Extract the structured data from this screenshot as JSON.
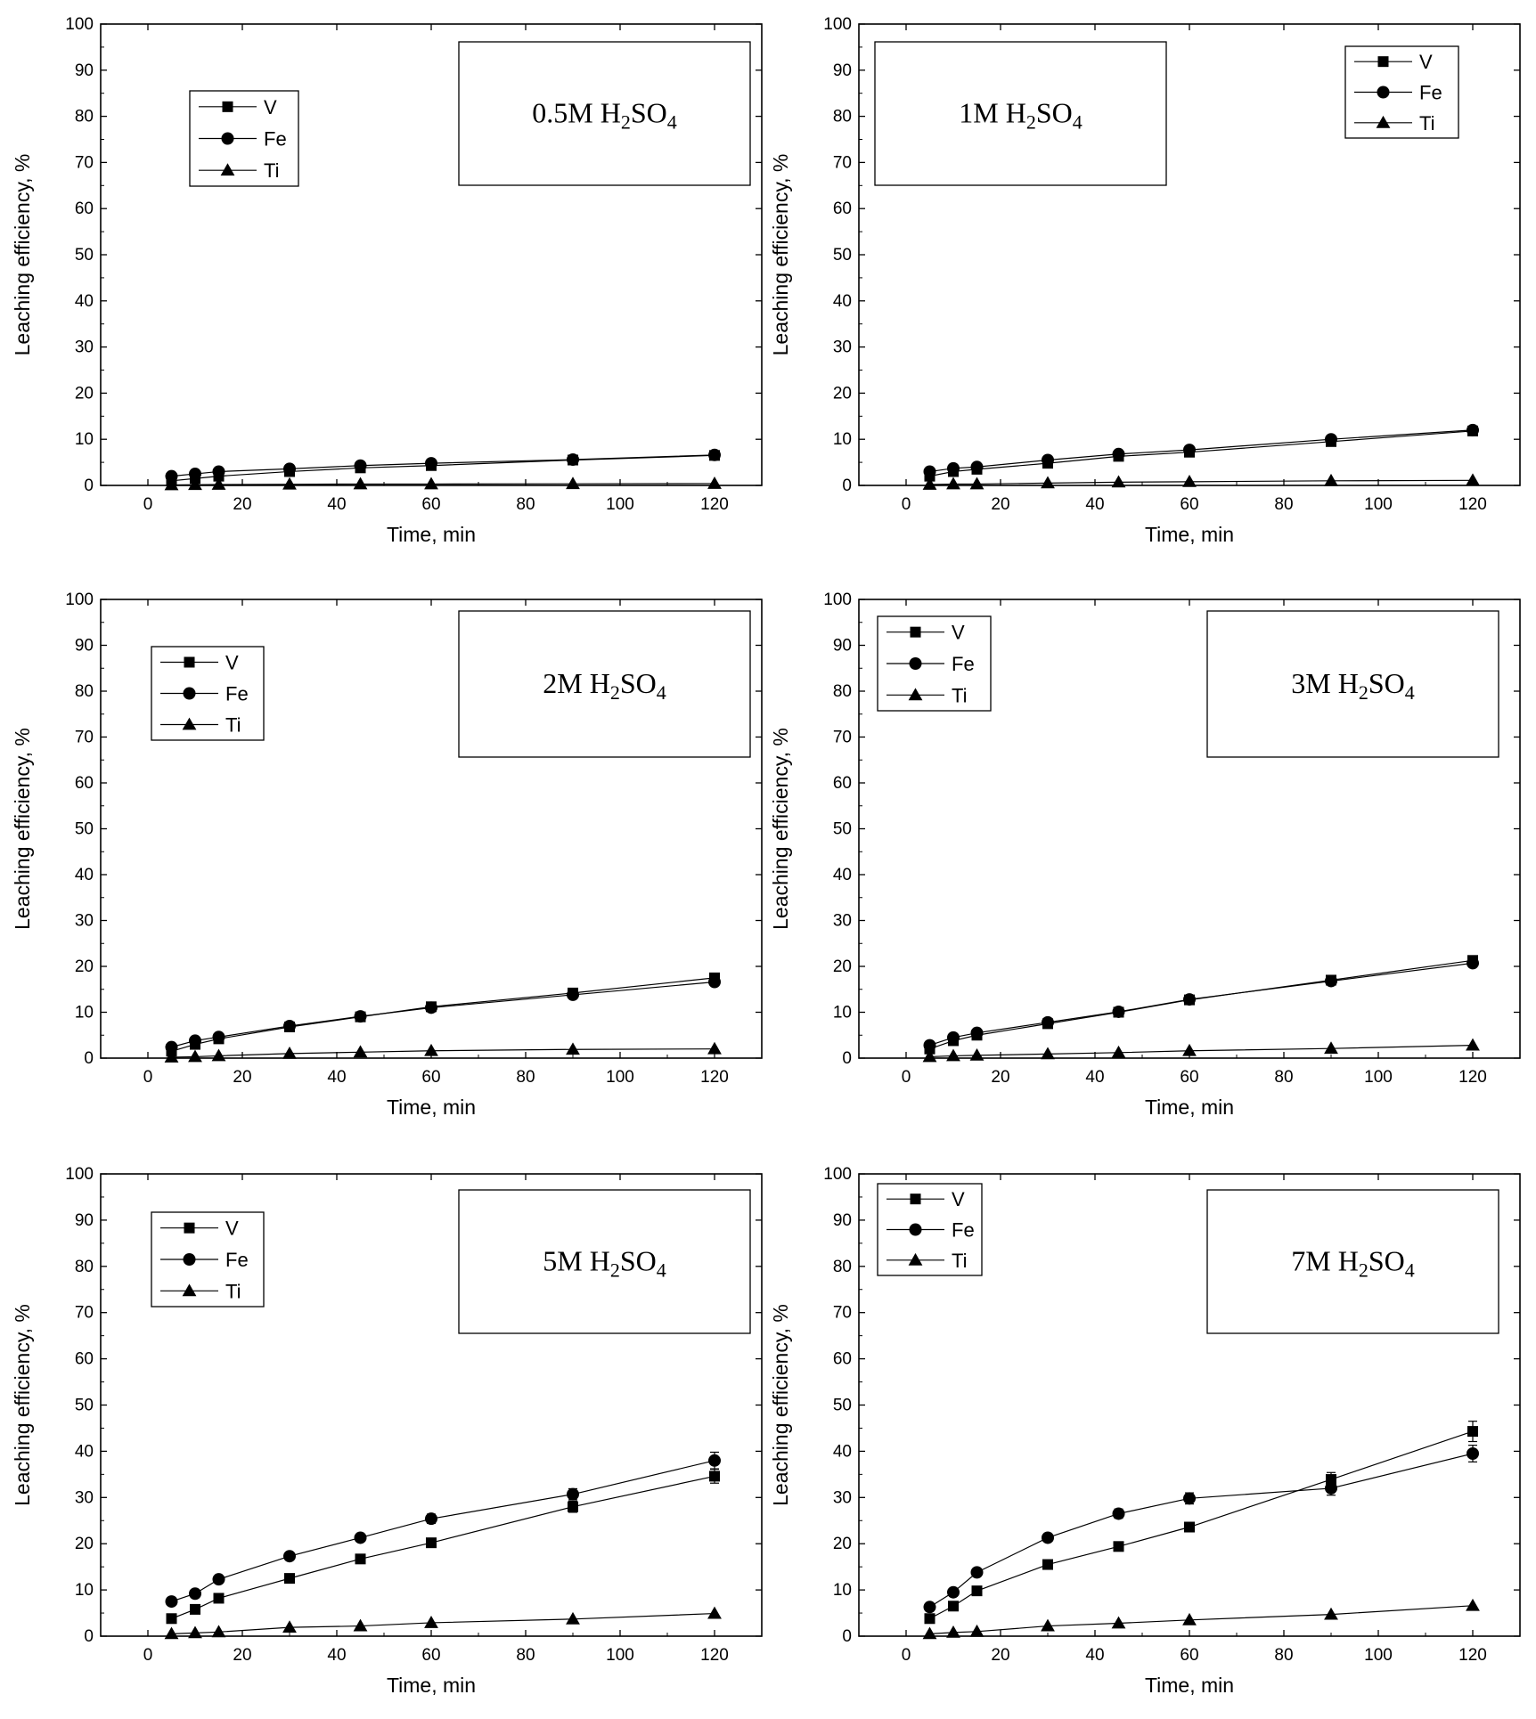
{
  "chart_data": [
    {
      "type": "line",
      "concentration": "0.5M",
      "acid": {
        "main": "H",
        "sub1": "2",
        "mid": "SO",
        "sub2": "4"
      },
      "xlabel": "Time, min",
      "ylabel": "Leaching efficiency, %",
      "xlim": [
        -10,
        130
      ],
      "ylim": [
        0,
        100
      ],
      "xticks": [
        0,
        20,
        40,
        60,
        80,
        100,
        120
      ],
      "yticks": [
        0,
        10,
        20,
        30,
        40,
        50,
        60,
        70,
        80,
        90,
        100
      ],
      "legend_position": "upper-left",
      "x": [
        5,
        10,
        15,
        30,
        45,
        60,
        90,
        120
      ],
      "series": [
        {
          "name": "V",
          "marker": "square",
          "values": [
            1.0,
            1.5,
            2.0,
            3.0,
            3.8,
            4.3,
            5.5,
            6.5
          ]
        },
        {
          "name": "Fe",
          "marker": "circle",
          "values": [
            2.0,
            2.5,
            3.0,
            3.6,
            4.3,
            4.8,
            5.6,
            6.6
          ]
        },
        {
          "name": "Ti",
          "marker": "triangle",
          "values": [
            0.1,
            0.15,
            0.2,
            0.25,
            0.3,
            0.3,
            0.35,
            0.4
          ]
        }
      ]
    },
    {
      "type": "line",
      "concentration": "1M",
      "acid": {
        "main": "H",
        "sub1": "2",
        "mid": "SO",
        "sub2": "4"
      },
      "xlabel": "Time, min",
      "ylabel": "Leaching efficiency, %",
      "xlim": [
        -10,
        130
      ],
      "ylim": [
        0,
        100
      ],
      "xticks": [
        0,
        20,
        40,
        60,
        80,
        100,
        120
      ],
      "yticks": [
        0,
        10,
        20,
        30,
        40,
        50,
        60,
        70,
        80,
        90,
        100
      ],
      "legend_position": "upper-right",
      "x": [
        5,
        10,
        15,
        30,
        45,
        60,
        90,
        120
      ],
      "series": [
        {
          "name": "V",
          "marker": "square",
          "values": [
            2.0,
            3.0,
            3.5,
            4.8,
            6.3,
            7.2,
            9.5,
            11.8
          ]
        },
        {
          "name": "Fe",
          "marker": "circle",
          "values": [
            3.0,
            3.7,
            4.0,
            5.5,
            6.8,
            7.7,
            10.0,
            12.0
          ]
        },
        {
          "name": "Ti",
          "marker": "triangle",
          "values": [
            0.2,
            0.3,
            0.3,
            0.5,
            0.7,
            0.8,
            1.0,
            1.1
          ]
        }
      ]
    },
    {
      "type": "line",
      "concentration": "2M",
      "acid": {
        "main": "H",
        "sub1": "2",
        "mid": "SO",
        "sub2": "4"
      },
      "xlabel": "Time, min",
      "ylabel": "Leaching efficiency, %",
      "xlim": [
        -10,
        130
      ],
      "ylim": [
        0,
        100
      ],
      "xticks": [
        0,
        20,
        40,
        60,
        80,
        100,
        120
      ],
      "yticks": [
        0,
        10,
        20,
        30,
        40,
        50,
        60,
        70,
        80,
        90,
        100
      ],
      "legend_position": "upper-left",
      "x": [
        5,
        10,
        15,
        30,
        45,
        60,
        90,
        120
      ],
      "series": [
        {
          "name": "V",
          "marker": "square",
          "values": [
            1.5,
            3.0,
            4.2,
            6.8,
            9.0,
            11.2,
            14.2,
            17.5
          ]
        },
        {
          "name": "Fe",
          "marker": "circle",
          "values": [
            2.4,
            3.8,
            4.6,
            7.0,
            9.1,
            11.0,
            13.8,
            16.6
          ]
        },
        {
          "name": "Ti",
          "marker": "triangle",
          "values": [
            0.2,
            0.3,
            0.5,
            1.0,
            1.3,
            1.6,
            1.9,
            2.0
          ]
        }
      ]
    },
    {
      "type": "line",
      "concentration": "3M",
      "acid": {
        "main": "H",
        "sub1": "2",
        "mid": "SO",
        "sub2": "4"
      },
      "xlabel": "Time, min",
      "ylabel": "Leaching efficiency, %",
      "xlim": [
        -10,
        130
      ],
      "ylim": [
        0,
        100
      ],
      "xticks": [
        0,
        20,
        40,
        60,
        80,
        100,
        120
      ],
      "yticks": [
        0,
        10,
        20,
        30,
        40,
        50,
        60,
        70,
        80,
        90,
        100
      ],
      "legend_position": "upper-left",
      "x": [
        5,
        10,
        15,
        30,
        45,
        60,
        90,
        120
      ],
      "series": [
        {
          "name": "V",
          "marker": "square",
          "values": [
            2.0,
            3.8,
            5.0,
            7.5,
            10.0,
            12.7,
            17.0,
            21.3
          ]
        },
        {
          "name": "Fe",
          "marker": "circle",
          "values": [
            2.8,
            4.5,
            5.5,
            7.8,
            10.1,
            12.8,
            16.8,
            20.7
          ]
        },
        {
          "name": "Ti",
          "marker": "triangle",
          "values": [
            0.3,
            0.5,
            0.6,
            0.9,
            1.2,
            1.6,
            2.1,
            2.8
          ]
        }
      ]
    },
    {
      "type": "line",
      "concentration": "5M",
      "acid": {
        "main": "H",
        "sub1": "2",
        "mid": "SO",
        "sub2": "4"
      },
      "xlabel": "Time, min",
      "ylabel": "Leaching efficiency, %",
      "xlim": [
        -10,
        130
      ],
      "ylim": [
        0,
        100
      ],
      "xticks": [
        0,
        20,
        40,
        60,
        80,
        100,
        120
      ],
      "yticks": [
        0,
        10,
        20,
        30,
        40,
        50,
        60,
        70,
        80,
        90,
        100
      ],
      "legend_position": "upper-left",
      "x": [
        5,
        10,
        15,
        30,
        45,
        60,
        90,
        120
      ],
      "series": [
        {
          "name": "V",
          "marker": "square",
          "values": [
            3.8,
            5.8,
            8.2,
            12.5,
            16.7,
            20.2,
            28.0,
            34.6
          ],
          "errors": [
            0,
            0,
            0,
            0,
            0,
            0,
            1.2,
            1.5
          ]
        },
        {
          "name": "Fe",
          "marker": "circle",
          "values": [
            7.5,
            9.2,
            12.3,
            17.3,
            21.3,
            25.4,
            30.7,
            38.0
          ],
          "errors": [
            0,
            0,
            0,
            0,
            0,
            1.0,
            1.2,
            1.8
          ]
        },
        {
          "name": "Ti",
          "marker": "triangle",
          "values": [
            0.5,
            0.7,
            0.9,
            1.9,
            2.2,
            2.9,
            3.7,
            4.9
          ]
        }
      ]
    },
    {
      "type": "line",
      "concentration": "7M",
      "acid": {
        "main": "H",
        "sub1": "2",
        "mid": "SO",
        "sub2": "4"
      },
      "xlabel": "Time, min",
      "ylabel": "Leaching efficiency, %",
      "xlim": [
        -10,
        130
      ],
      "ylim": [
        0,
        100
      ],
      "xticks": [
        0,
        20,
        40,
        60,
        80,
        100,
        120
      ],
      "yticks": [
        0,
        10,
        20,
        30,
        40,
        50,
        60,
        70,
        80,
        90,
        100
      ],
      "legend_position": "upper-left",
      "x": [
        5,
        10,
        15,
        30,
        45,
        60,
        90,
        120
      ],
      "series": [
        {
          "name": "V",
          "marker": "square",
          "values": [
            3.8,
            6.5,
            9.8,
            15.5,
            19.4,
            23.6,
            33.9,
            44.3
          ],
          "errors": [
            0,
            0,
            0,
            0,
            0,
            0,
            1.5,
            2.2
          ]
        },
        {
          "name": "Fe",
          "marker": "circle",
          "values": [
            6.3,
            9.5,
            13.8,
            21.3,
            26.5,
            29.8,
            32.0,
            39.5
          ],
          "errors": [
            0,
            0,
            0,
            0.8,
            1.0,
            1.2,
            1.5,
            1.8
          ]
        },
        {
          "name": "Ti",
          "marker": "triangle",
          "values": [
            0.5,
            0.8,
            1.0,
            2.2,
            2.8,
            3.5,
            4.7,
            6.6
          ]
        }
      ]
    }
  ]
}
